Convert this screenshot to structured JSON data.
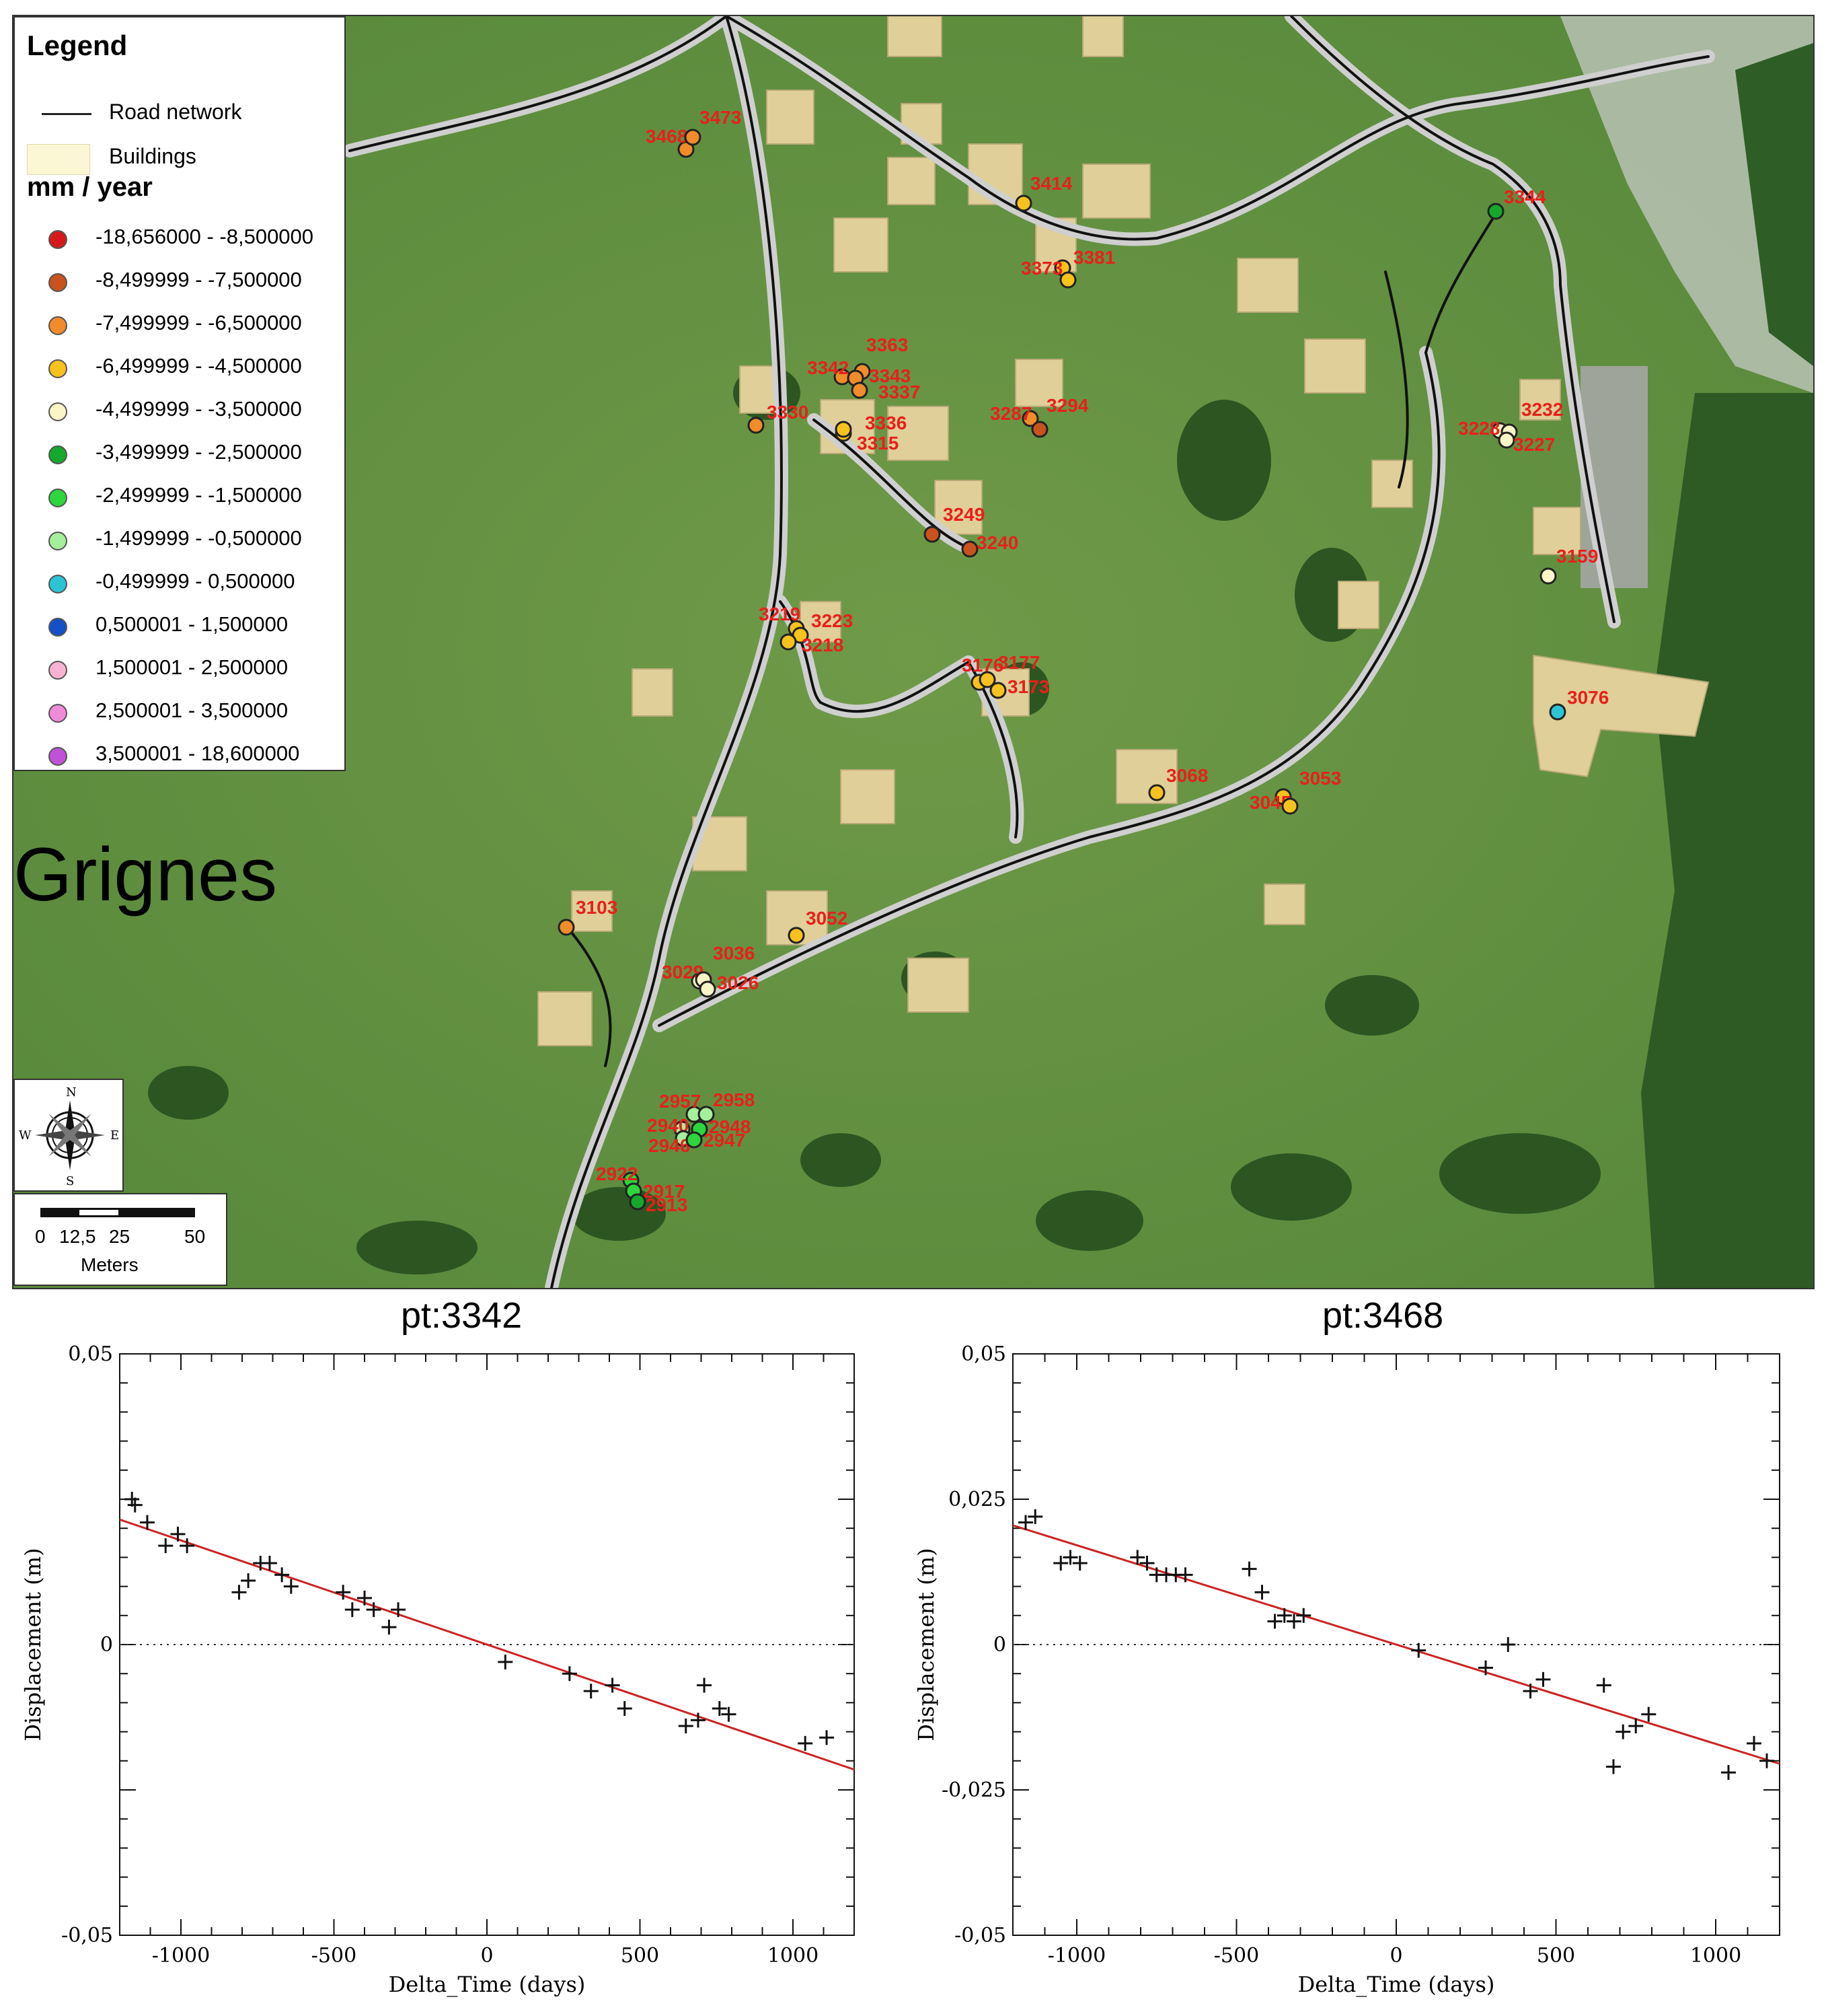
{
  "map": {
    "legend": {
      "title": "Legend",
      "road_label": "Road network",
      "building_label": "Buildings",
      "units_label": "mm / year",
      "classes": [
        {
          "range": "-18,656000 - -8,500000",
          "color": "#d7191c"
        },
        {
          "range": "-8,499999 - -7,500000",
          "color": "#c8531e"
        },
        {
          "range": "-7,499999 - -6,500000",
          "color": "#f08c2a"
        },
        {
          "range": "-6,499999 - -4,500000",
          "color": "#f7c21e"
        },
        {
          "range": "-4,499999 - -3,500000",
          "color": "#fbf6c8"
        },
        {
          "range": "-3,499999 - -2,500000",
          "color": "#14a82c"
        },
        {
          "range": "-2,499999 - -1,500000",
          "color": "#2cd63c"
        },
        {
          "range": "-1,499999 - -0,500000",
          "color": "#a6ef9c"
        },
        {
          "range": "-0,499999 - 0,500000",
          "color": "#2bc4d4"
        },
        {
          "range": "0,500001 - 1,500000",
          "color": "#1650c8"
        },
        {
          "range": "1,500001 - 2,500000",
          "color": "#f8b4d2"
        },
        {
          "range": "2,500001 - 3,500000",
          "color": "#ef8cd8"
        },
        {
          "range": "3,500001 - 18,600000",
          "color": "#c052d8"
        }
      ]
    },
    "place_label": "Grignes",
    "compass": {
      "n": "N",
      "s": "S",
      "e": "E",
      "w": "W"
    },
    "scalebar": {
      "ticks": [
        "0",
        "12,5",
        "25",
        "50"
      ],
      "unit": "Meters"
    },
    "points": [
      {
        "id": "3468",
        "cls": 2
      },
      {
        "id": "3473",
        "cls": 2
      },
      {
        "id": "3414",
        "cls": 3
      },
      {
        "id": "3344",
        "cls": 5
      },
      {
        "id": "3373",
        "cls": 3
      },
      {
        "id": "3381",
        "cls": 3
      },
      {
        "id": "3363",
        "cls": 2
      },
      {
        "id": "3342",
        "cls": 2
      },
      {
        "id": "3343",
        "cls": 2
      },
      {
        "id": "3337",
        "cls": 2
      },
      {
        "id": "3330",
        "cls": 2
      },
      {
        "id": "3336",
        "cls": 3
      },
      {
        "id": "3315",
        "cls": 3
      },
      {
        "id": "3287",
        "cls": 2
      },
      {
        "id": "3294",
        "cls": 1
      },
      {
        "id": "3228",
        "cls": 4
      },
      {
        "id": "3232",
        "cls": 4
      },
      {
        "id": "3227",
        "cls": 4
      },
      {
        "id": "3249",
        "cls": 1
      },
      {
        "id": "3240",
        "cls": 1
      },
      {
        "id": "3159",
        "cls": 4
      },
      {
        "id": "3219",
        "cls": 3
      },
      {
        "id": "3223",
        "cls": 3
      },
      {
        "id": "3218",
        "cls": 3
      },
      {
        "id": "3176",
        "cls": 3
      },
      {
        "id": "3177",
        "cls": 3
      },
      {
        "id": "3173",
        "cls": 3
      },
      {
        "id": "3076",
        "cls": 8
      },
      {
        "id": "3068",
        "cls": 3
      },
      {
        "id": "3045",
        "cls": 3
      },
      {
        "id": "3053",
        "cls": 3
      },
      {
        "id": "3103",
        "cls": 2
      },
      {
        "id": "3052",
        "cls": 3
      },
      {
        "id": "3029",
        "cls": 4
      },
      {
        "id": "3036",
        "cls": 4
      },
      {
        "id": "3026",
        "cls": 4
      },
      {
        "id": "2957",
        "cls": 7
      },
      {
        "id": "2958",
        "cls": 7
      },
      {
        "id": "2940",
        "cls": 7
      },
      {
        "id": "2948",
        "cls": 6
      },
      {
        "id": "2946",
        "cls": 7
      },
      {
        "id": "2947",
        "cls": 6
      },
      {
        "id": "2922",
        "cls": 6
      },
      {
        "id": "2917",
        "cls": 6
      },
      {
        "id": "2913",
        "cls": 5
      }
    ]
  },
  "chart_data": [
    {
      "type": "scatter",
      "title": "pt:3342",
      "xlabel": "Delta_Time (days)",
      "ylabel": "Displacement (m)",
      "xlim": [
        -1200,
        1200
      ],
      "ylim": [
        -0.05,
        0.05
      ],
      "xticks": [
        "-1000",
        "-500",
        "0",
        "500",
        "1000"
      ],
      "yticks": [
        "0,05",
        "0",
        "-0,05"
      ],
      "zero_line": "dotted",
      "trend_line": {
        "color": "#cc2222",
        "x": [
          -1200,
          1200
        ],
        "y": [
          0.0215,
          -0.0215
        ]
      },
      "points": {
        "x": [
          -1160,
          -1150,
          -1110,
          -1050,
          -1010,
          -980,
          -810,
          -780,
          -740,
          -710,
          -670,
          -640,
          -470,
          -440,
          -400,
          -370,
          -320,
          -290,
          60,
          270,
          340,
          410,
          450,
          650,
          690,
          710,
          760,
          790,
          1040,
          1110
        ],
        "y": [
          0.025,
          0.024,
          0.021,
          0.017,
          0.019,
          0.017,
          0.009,
          0.011,
          0.014,
          0.014,
          0.012,
          0.01,
          0.009,
          0.006,
          0.008,
          0.006,
          0.003,
          0.006,
          -0.003,
          -0.005,
          -0.008,
          -0.007,
          -0.011,
          -0.014,
          -0.013,
          -0.007,
          -0.011,
          -0.012,
          -0.017,
          -0.016
        ]
      }
    },
    {
      "type": "scatter",
      "title": "pt:3468",
      "xlabel": "Delta_Time (days)",
      "ylabel": "Displacement (m)",
      "xlim": [
        -1200,
        1200
      ],
      "ylim": [
        -0.05,
        0.05
      ],
      "xticks": [
        "-1000",
        "-500",
        "0",
        "500",
        "1000"
      ],
      "yticks": [
        "0,05",
        "0,025",
        "0",
        "-0,025",
        "-0,05"
      ],
      "zero_line": "dotted",
      "trend_line": {
        "color": "#cc2222",
        "x": [
          -1200,
          1200
        ],
        "y": [
          0.0205,
          -0.0205
        ]
      },
      "points": {
        "x": [
          -1160,
          -1130,
          -1050,
          -1020,
          -990,
          -810,
          -780,
          -750,
          -720,
          -690,
          -660,
          -460,
          -420,
          -380,
          -350,
          -320,
          -290,
          70,
          280,
          350,
          420,
          460,
          650,
          680,
          710,
          750,
          790,
          1040,
          1120,
          1160
        ],
        "y": [
          0.021,
          0.022,
          0.014,
          0.015,
          0.014,
          0.015,
          0.014,
          0.012,
          0.012,
          0.012,
          0.012,
          0.013,
          0.009,
          0.004,
          0.005,
          0.004,
          0.005,
          -0.001,
          -0.004,
          0.0,
          -0.008,
          -0.006,
          -0.007,
          -0.021,
          -0.015,
          -0.014,
          -0.012,
          -0.022,
          -0.017,
          -0.02
        ]
      }
    }
  ]
}
